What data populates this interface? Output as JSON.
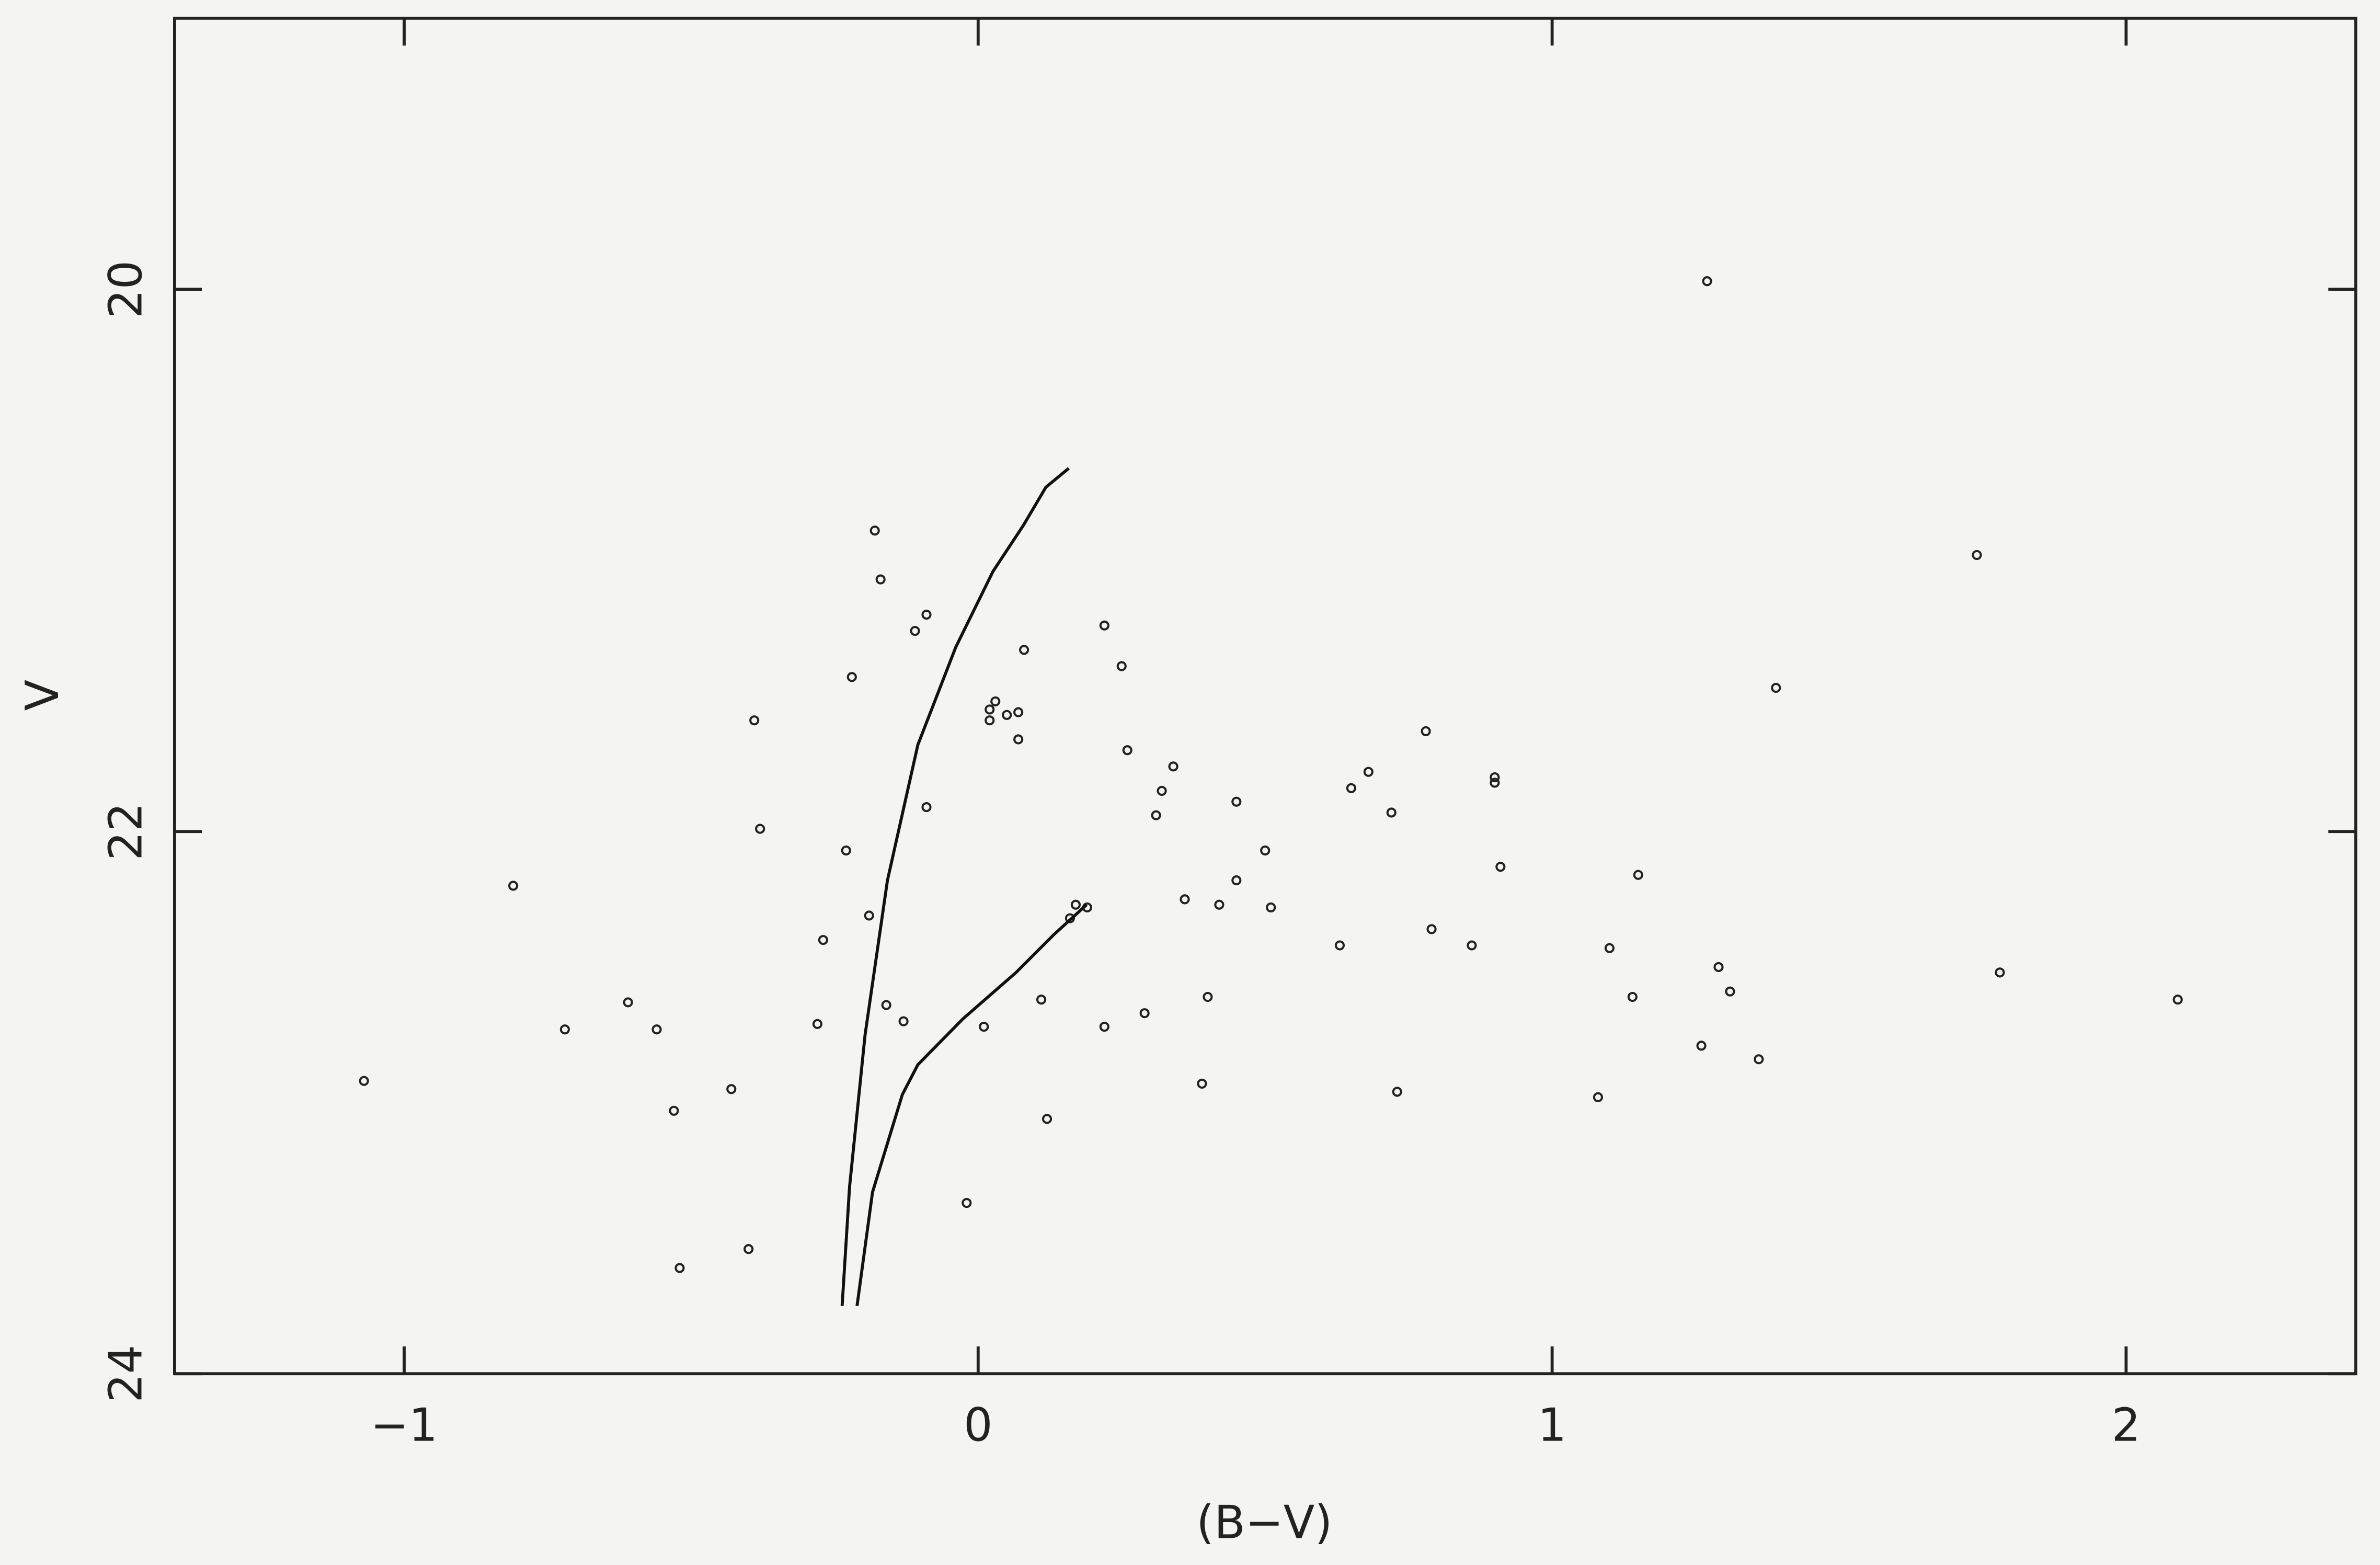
{
  "chart_data": {
    "type": "scatter",
    "xlabel": "(B−V)",
    "ylabel": "V",
    "xlim": [
      -1.4,
      2.4
    ],
    "ylim": [
      24,
      19
    ],
    "xticks": [
      {
        "value": -1,
        "label": "−1"
      },
      0,
      1,
      2
    ],
    "yticks": [
      20,
      22,
      24
    ],
    "series": [
      {
        "type": "scatter",
        "color": "#222222",
        "x": [
          1.27,
          1.74,
          -0.18,
          -0.17,
          -0.09,
          -0.11,
          -0.22,
          0.08,
          0.25,
          0.22,
          1.39,
          -0.39,
          0.03,
          0.02,
          0.05,
          0.07,
          0.02,
          0.07,
          0.78,
          0.26,
          0.34,
          0.32,
          0.31,
          0.68,
          0.65,
          0.9,
          0.9,
          0.45,
          0.72,
          -0.09,
          -0.38,
          -0.23,
          0.5,
          0.91,
          1.15,
          -0.81,
          0.45,
          0.36,
          0.42,
          0.51,
          0.17,
          0.19,
          -0.19,
          0.16,
          -0.27,
          0.79,
          0.63,
          0.86,
          1.1,
          1.29,
          1.78,
          1.31,
          2.09,
          -0.61,
          -0.16,
          0.11,
          0.4,
          1.14,
          0.29,
          -0.13,
          -0.28,
          0.01,
          0.22,
          -0.72,
          -0.56,
          1.26,
          1.36,
          -1.07,
          0.39,
          -0.43,
          0.73,
          1.08,
          -0.53,
          0.12,
          -0.02,
          -0.4,
          -0.52
        ],
        "values": [
          19.97,
          20.98,
          20.89,
          21.07,
          21.2,
          21.26,
          21.43,
          21.33,
          21.39,
          21.24,
          21.47,
          21.59,
          21.52,
          21.55,
          21.57,
          21.56,
          21.59,
          21.66,
          21.63,
          21.7,
          21.76,
          21.85,
          21.94,
          21.78,
          21.84,
          21.8,
          21.82,
          21.89,
          21.93,
          21.91,
          21.99,
          22.07,
          22.07,
          22.13,
          22.16,
          22.2,
          22.18,
          22.25,
          22.27,
          22.28,
          22.27,
          22.28,
          22.31,
          22.32,
          22.4,
          22.36,
          22.42,
          22.42,
          22.43,
          22.5,
          22.52,
          22.59,
          22.62,
          22.63,
          22.64,
          22.62,
          22.61,
          22.61,
          22.67,
          22.7,
          22.71,
          22.72,
          22.72,
          22.73,
          22.73,
          22.79,
          22.84,
          22.92,
          22.93,
          22.95,
          22.96,
          22.98,
          23.03,
          23.06,
          23.37,
          23.54,
          23.61
        ]
      },
      {
        "type": "line",
        "color": "#111111",
        "x": [
          0.158,
          0.118,
          0.079,
          0.026,
          -0.039,
          -0.105,
          -0.158,
          -0.197,
          -0.224,
          -0.237
        ],
        "values": [
          20.66,
          20.73,
          20.87,
          21.04,
          21.32,
          21.68,
          22.18,
          22.75,
          23.31,
          23.75
        ]
      },
      {
        "type": "line",
        "color": "#111111",
        "x": [
          0.189,
          0.132,
          0.066,
          -0.026,
          -0.105,
          -0.132,
          -0.184,
          -0.211
        ],
        "values": [
          22.27,
          22.38,
          22.52,
          22.69,
          22.86,
          22.97,
          23.33,
          23.75
        ]
      }
    ]
  }
}
